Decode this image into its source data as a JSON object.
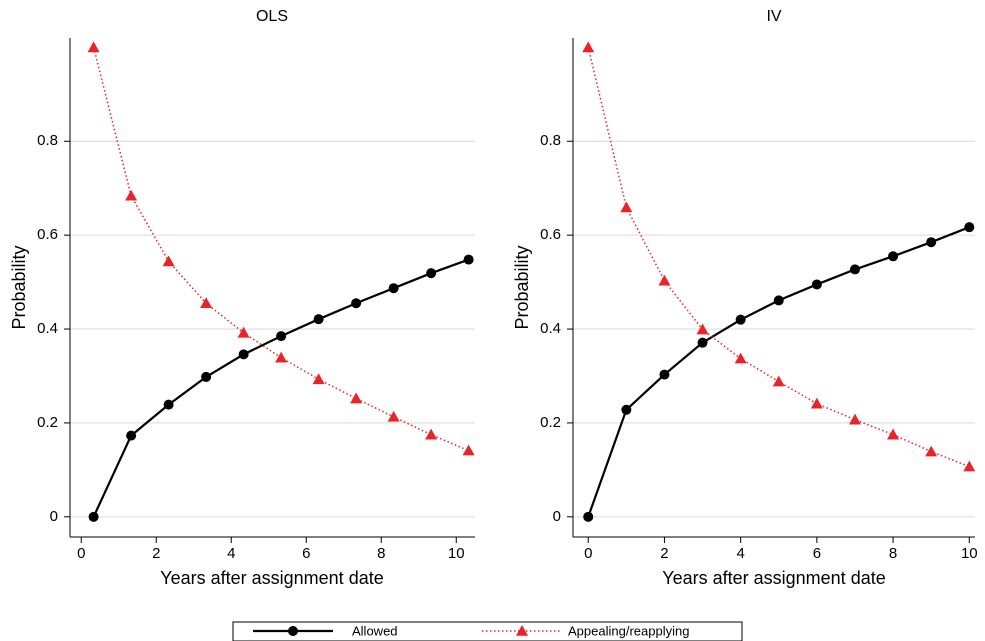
{
  "chart_data": [
    {
      "type": "line",
      "title": "OLS",
      "xlabel": "Years after assignment date",
      "ylabel": "Probability",
      "x": [
        0.33,
        1.33,
        2.33,
        3.33,
        4.33,
        5.33,
        6.33,
        7.33,
        8.33,
        9.33,
        10.33
      ],
      "series": [
        {
          "name": "Allowed",
          "color": "#000000",
          "values": [
            0,
            0.173,
            0.239,
            0.298,
            0.346,
            0.385,
            0.421,
            0.455,
            0.487,
            0.519,
            0.548
          ]
        },
        {
          "name": "Appealing/reapplying",
          "color": "#e8242a",
          "values": [
            1.0,
            0.684,
            0.544,
            0.455,
            0.392,
            0.339,
            0.293,
            0.252,
            0.213,
            0.175,
            0.141
          ]
        }
      ],
      "xlim": [
        -0.3,
        10.5
      ],
      "xticks": [
        0,
        2,
        4,
        6,
        8,
        10
      ],
      "ylim": [
        -0.043,
        1.02
      ],
      "yticks": [
        0,
        0.2,
        0.4,
        0.6,
        0.8
      ],
      "grid": true
    },
    {
      "type": "line",
      "title": "IV",
      "xlabel": "Years after assignment date",
      "ylabel": "Probability",
      "x": [
        0,
        1,
        2,
        3,
        4,
        5,
        6,
        7,
        8,
        9,
        10
      ],
      "series": [
        {
          "name": "Allowed",
          "color": "#000000",
          "values": [
            0,
            0.228,
            0.303,
            0.371,
            0.42,
            0.461,
            0.495,
            0.527,
            0.555,
            0.585,
            0.617
          ]
        },
        {
          "name": "Appealing/reapplying",
          "color": "#e8242a",
          "values": [
            1.0,
            0.659,
            0.503,
            0.399,
            0.337,
            0.288,
            0.241,
            0.207,
            0.175,
            0.139,
            0.107
          ]
        }
      ],
      "xlim": [
        -0.4,
        10.15
      ],
      "xticks": [
        0,
        2,
        4,
        6,
        8,
        10
      ],
      "ylim": [
        -0.043,
        1.02
      ],
      "yticks": [
        0,
        0.2,
        0.4,
        0.6,
        0.8
      ],
      "grid": true
    }
  ]
}
